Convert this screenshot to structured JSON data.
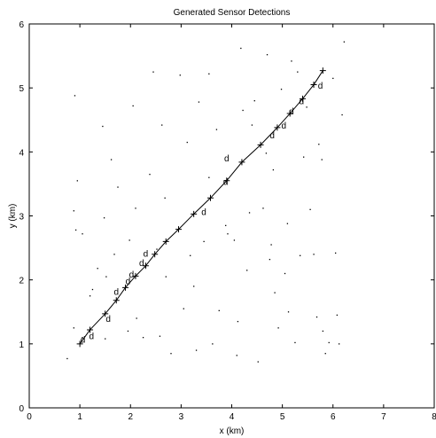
{
  "chart_data": {
    "type": "scatter",
    "title": "Generated Sensor Detections",
    "xlabel": "x (km)",
    "ylabel": "y (km)",
    "xlim": [
      0,
      8
    ],
    "ylim": [
      0,
      6
    ],
    "xticks": [
      "0",
      "1",
      "2",
      "3",
      "4",
      "5",
      "6",
      "7",
      "8"
    ],
    "yticks": [
      "0",
      "1",
      "2",
      "3",
      "4",
      "5",
      "6"
    ],
    "grid": false,
    "series": [
      {
        "role": "track",
        "marker": "plus",
        "connected": true,
        "points": [
          [
            1.0,
            1.0
          ],
          [
            1.2,
            1.22
          ],
          [
            1.5,
            1.47
          ],
          [
            1.72,
            1.68
          ],
          [
            1.9,
            1.88
          ],
          [
            2.1,
            2.06
          ],
          [
            2.3,
            2.22
          ],
          [
            2.48,
            2.4
          ],
          [
            2.7,
            2.6
          ],
          [
            2.95,
            2.79
          ],
          [
            3.25,
            3.03
          ],
          [
            3.58,
            3.28
          ],
          [
            3.9,
            3.55
          ],
          [
            4.2,
            3.84
          ],
          [
            4.57,
            4.11
          ],
          [
            4.9,
            4.38
          ],
          [
            5.15,
            4.6
          ],
          [
            5.4,
            4.83
          ],
          [
            5.62,
            5.05
          ],
          [
            5.8,
            5.27
          ]
        ]
      },
      {
        "role": "detections",
        "marker": "d",
        "points": [
          [
            1.06,
            1.05
          ],
          [
            1.23,
            1.11
          ],
          [
            1.56,
            1.38
          ],
          [
            1.72,
            1.8
          ],
          [
            1.95,
            1.97
          ],
          [
            2.02,
            2.07
          ],
          [
            2.22,
            2.25
          ],
          [
            2.3,
            2.4
          ],
          [
            3.45,
            3.05
          ],
          [
            3.88,
            3.52
          ],
          [
            3.9,
            3.89
          ],
          [
            4.8,
            4.25
          ],
          [
            5.03,
            4.4
          ],
          [
            5.18,
            4.62
          ],
          [
            5.38,
            4.78
          ],
          [
            5.75,
            5.02
          ]
        ]
      },
      {
        "role": "clutter",
        "marker": "dot",
        "points": [
          [
            0.75,
            0.77
          ],
          [
            0.88,
            1.25
          ],
          [
            1.05,
            1.1
          ],
          [
            1.2,
            1.75
          ],
          [
            1.25,
            1.85
          ],
          [
            1.35,
            2.18
          ],
          [
            1.48,
            2.97
          ],
          [
            1.5,
            1.08
          ],
          [
            1.62,
            3.88
          ],
          [
            1.68,
            2.4
          ],
          [
            1.75,
            3.45
          ],
          [
            1.95,
            1.2
          ],
          [
            1.98,
            2.62
          ],
          [
            2.05,
            4.72
          ],
          [
            2.1,
            3.12
          ],
          [
            2.25,
            1.1
          ],
          [
            2.3,
            2.2
          ],
          [
            2.38,
            3.65
          ],
          [
            2.45,
            5.25
          ],
          [
            2.52,
            2.48
          ],
          [
            2.58,
            1.12
          ],
          [
            2.62,
            4.42
          ],
          [
            2.68,
            3.28
          ],
          [
            2.7,
            2.05
          ],
          [
            2.8,
            0.85
          ],
          [
            2.98,
            5.2
          ],
          [
            3.05,
            1.55
          ],
          [
            3.12,
            4.15
          ],
          [
            3.18,
            2.38
          ],
          [
            3.25,
            1.9
          ],
          [
            3.35,
            4.78
          ],
          [
            3.45,
            2.6
          ],
          [
            3.55,
            5.22
          ],
          [
            3.62,
            1.0
          ],
          [
            3.7,
            4.35
          ],
          [
            3.75,
            1.52
          ],
          [
            3.88,
            2.85
          ],
          [
            3.92,
            2.72
          ],
          [
            4.05,
            2.62
          ],
          [
            4.1,
            0.82
          ],
          [
            4.18,
            5.62
          ],
          [
            4.22,
            4.65
          ],
          [
            4.3,
            2.15
          ],
          [
            4.35,
            3.05
          ],
          [
            4.45,
            4.8
          ],
          [
            4.52,
            0.72
          ],
          [
            4.62,
            3.12
          ],
          [
            4.7,
            5.52
          ],
          [
            4.75,
            2.32
          ],
          [
            4.82,
            3.72
          ],
          [
            4.85,
            1.8
          ],
          [
            4.92,
            1.25
          ],
          [
            4.98,
            4.98
          ],
          [
            5.05,
            2.1
          ],
          [
            5.12,
            1.5
          ],
          [
            5.18,
            5.42
          ],
          [
            5.25,
            1.02
          ],
          [
            5.3,
            5.25
          ],
          [
            5.35,
            2.38
          ],
          [
            5.42,
            3.92
          ],
          [
            5.48,
            4.7
          ],
          [
            5.55,
            3.1
          ],
          [
            5.62,
            2.4
          ],
          [
            5.68,
            1.42
          ],
          [
            5.72,
            4.12
          ],
          [
            5.78,
            3.88
          ],
          [
            5.85,
            0.85
          ],
          [
            5.92,
            1.02
          ],
          [
            6.0,
            5.15
          ],
          [
            6.05,
            2.42
          ],
          [
            6.08,
            1.45
          ],
          [
            6.12,
            1.0
          ],
          [
            6.18,
            4.58
          ],
          [
            6.22,
            5.72
          ],
          [
            0.9,
            4.88
          ],
          [
            0.95,
            3.55
          ],
          [
            1.05,
            2.72
          ],
          [
            0.92,
            2.78
          ],
          [
            0.88,
            3.08
          ],
          [
            1.45,
            4.4
          ],
          [
            4.4,
            4.42
          ],
          [
            4.68,
            3.98
          ],
          [
            4.78,
            2.55
          ],
          [
            5.1,
            2.88
          ],
          [
            3.55,
            3.6
          ],
          [
            1.52,
            2.05
          ],
          [
            2.12,
            1.4
          ],
          [
            3.3,
            0.9
          ],
          [
            5.8,
            1.2
          ],
          [
            4.12,
            1.35
          ]
        ]
      }
    ]
  }
}
